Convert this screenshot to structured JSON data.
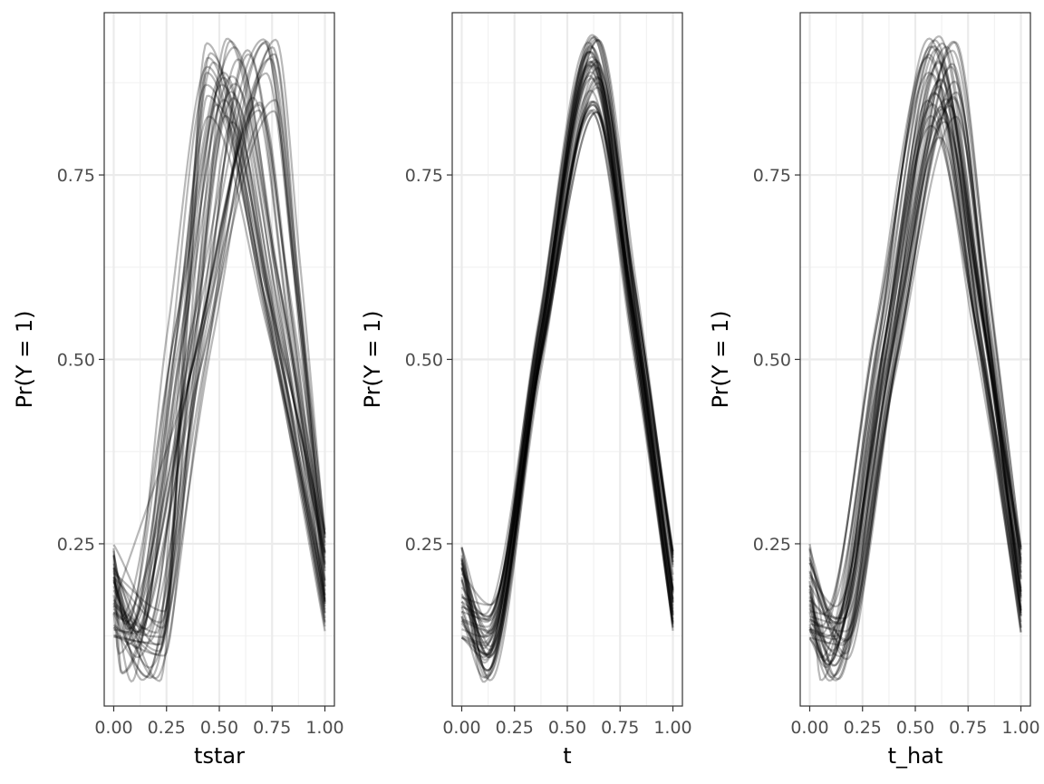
{
  "chart_data": [
    {
      "type": "line",
      "xlabel": "tstar",
      "ylabel": "Pr(Y = 1)",
      "xlim": [
        0,
        1
      ],
      "ylim": [
        0.03,
        0.97
      ],
      "x_ticks": [
        "0.00",
        "0.25",
        "0.50",
        "0.75",
        "1.00"
      ],
      "y_ticks": [
        "0.25",
        "0.50",
        "0.75"
      ],
      "grid": true,
      "line_color": "#000000",
      "line_opacity": 0.28,
      "curve_count": 40,
      "curve_shape": {
        "start": [
          0.12,
          0.25
        ],
        "dip_x": [
          0.0,
          0.25
        ],
        "dip_y": [
          0.06,
          0.16
        ],
        "peak_x": [
          0.42,
          0.78
        ],
        "peak_y": [
          0.82,
          0.94
        ],
        "end": [
          0.13,
          0.27
        ]
      }
    },
    {
      "type": "line",
      "xlabel": "t",
      "ylabel": "Pr(Y = 1)",
      "xlim": [
        0,
        1
      ],
      "ylim": [
        0.03,
        0.97
      ],
      "x_ticks": [
        "0.00",
        "0.25",
        "0.50",
        "0.75",
        "1.00"
      ],
      "y_ticks": [
        "0.25",
        "0.50",
        "0.75"
      ],
      "grid": true,
      "line_color": "#000000",
      "line_opacity": 0.28,
      "curve_count": 40,
      "curve_shape": {
        "start": [
          0.12,
          0.25
        ],
        "dip_x": [
          0.1,
          0.14
        ],
        "dip_y": [
          0.06,
          0.17
        ],
        "peak_x": [
          0.6,
          0.65
        ],
        "peak_y": [
          0.83,
          0.94
        ],
        "end": [
          0.13,
          0.25
        ]
      }
    },
    {
      "type": "line",
      "xlabel": "t_hat",
      "ylabel": "Pr(Y = 1)",
      "xlim": [
        0,
        1
      ],
      "ylim": [
        0.03,
        0.97
      ],
      "x_ticks": [
        "0.00",
        "0.25",
        "0.50",
        "0.75",
        "1.00"
      ],
      "y_ticks": [
        "0.25",
        "0.50",
        "0.75"
      ],
      "grid": true,
      "line_color": "#000000",
      "line_opacity": 0.28,
      "curve_count": 40,
      "curve_shape": {
        "start": [
          0.12,
          0.25
        ],
        "dip_x": [
          0.05,
          0.18
        ],
        "dip_y": [
          0.06,
          0.17
        ],
        "peak_x": [
          0.55,
          0.7
        ],
        "peak_y": [
          0.8,
          0.94
        ],
        "end": [
          0.13,
          0.25
        ]
      }
    }
  ]
}
